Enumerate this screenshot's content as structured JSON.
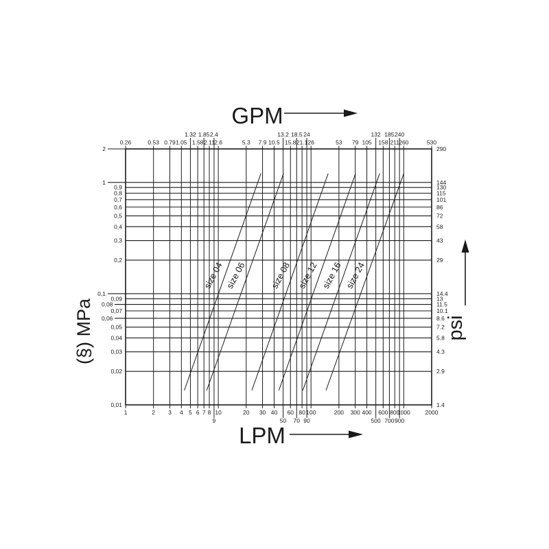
{
  "background": "#ffffff",
  "ink_color": "#1a1a1a",
  "chart_data": {
    "type": "line",
    "description": "Log-log pressure drop vs flow rate chart with parallel size lines",
    "x_scale": "log",
    "y_scale": "log",
    "x_range_lpm": [
      1,
      2000
    ],
    "y_range_mpa": [
      0.01,
      2
    ],
    "x_gridlines_lpm": [
      1,
      2,
      3,
      4,
      5,
      6,
      7,
      8,
      9,
      10,
      20,
      30,
      40,
      50,
      60,
      70,
      80,
      90,
      100,
      200,
      300,
      400,
      500,
      600,
      700,
      800,
      900,
      1000,
      2000
    ],
    "y_gridlines_mpa": [
      2,
      1,
      0.9,
      0.8,
      0.7,
      0.6,
      0.5,
      0.4,
      0.3,
      0.2,
      0.1,
      0.09,
      0.08,
      0.07,
      0.06,
      0.05,
      0.04,
      0.03,
      0.02,
      0.01
    ],
    "axes": {
      "top": {
        "title": "GPM",
        "near_labels": [
          {
            "lpm": 1,
            "label": "0.26"
          },
          {
            "lpm": 2,
            "label": "0.53"
          },
          {
            "lpm": 3,
            "label": "0.79"
          },
          {
            "lpm": 4,
            "label": "1.05"
          },
          {
            "lpm": 6,
            "label": "1.58"
          },
          {
            "lpm": 8,
            "label": "2.11"
          },
          {
            "lpm": 10,
            "label": "2.6"
          },
          {
            "lpm": 20,
            "label": "5.3"
          },
          {
            "lpm": 30,
            "label": "7.9"
          },
          {
            "lpm": 40,
            "label": "10.5"
          },
          {
            "lpm": 60,
            "label": "15.8"
          },
          {
            "lpm": 80,
            "label": "21.1"
          },
          {
            "lpm": 100,
            "label": "26"
          },
          {
            "lpm": 200,
            "label": "53"
          },
          {
            "lpm": 300,
            "label": "79"
          },
          {
            "lpm": 400,
            "label": "105"
          },
          {
            "lpm": 600,
            "label": "158"
          },
          {
            "lpm": 800,
            "label": "211"
          },
          {
            "lpm": 1000,
            "label": "260"
          },
          {
            "lpm": 2000,
            "label": "530"
          }
        ],
        "far_labels": [
          {
            "lpm": 5,
            "label": "1.32"
          },
          {
            "lpm": 7,
            "label": "1.85"
          },
          {
            "lpm": 9,
            "label": "2.4"
          },
          {
            "lpm": 50,
            "label": "13.2"
          },
          {
            "lpm": 70,
            "label": "18.5"
          },
          {
            "lpm": 90,
            "label": "24"
          },
          {
            "lpm": 500,
            "label": "132"
          },
          {
            "lpm": 700,
            "label": "185"
          },
          {
            "lpm": 900,
            "label": "240"
          }
        ]
      },
      "bottom": {
        "title": "LPM",
        "near_labels": [
          {
            "lpm": 1,
            "label": "1"
          },
          {
            "lpm": 2,
            "label": "2"
          },
          {
            "lpm": 3,
            "label": "3"
          },
          {
            "lpm": 4,
            "label": "4"
          },
          {
            "lpm": 5,
            "label": "5"
          },
          {
            "lpm": 6,
            "label": "6"
          },
          {
            "lpm": 7,
            "label": "7"
          },
          {
            "lpm": 8,
            "label": "8"
          },
          {
            "lpm": 10,
            "label": "10"
          },
          {
            "lpm": 20,
            "label": "20"
          },
          {
            "lpm": 30,
            "label": "30"
          },
          {
            "lpm": 40,
            "label": "40"
          },
          {
            "lpm": 60,
            "label": "60"
          },
          {
            "lpm": 80,
            "label": "80"
          },
          {
            "lpm": 100,
            "label": "100"
          },
          {
            "lpm": 200,
            "label": "200"
          },
          {
            "lpm": 300,
            "label": "300"
          },
          {
            "lpm": 400,
            "label": "400"
          },
          {
            "lpm": 600,
            "label": "600"
          },
          {
            "lpm": 800,
            "label": "800"
          },
          {
            "lpm": 1000,
            "label": "1000"
          },
          {
            "lpm": 2000,
            "label": "2000"
          }
        ],
        "far_labels": [
          {
            "lpm": 9,
            "label": "9"
          },
          {
            "lpm": 50,
            "label": "50"
          },
          {
            "lpm": 70,
            "label": "70"
          },
          {
            "lpm": 90,
            "label": "90"
          },
          {
            "lpm": 500,
            "label": "500"
          },
          {
            "lpm": 700,
            "label": "700"
          },
          {
            "lpm": 900,
            "label": "900"
          }
        ]
      },
      "left": {
        "title": "(§) MPa",
        "labels": [
          {
            "mpa": 2,
            "label": "2",
            "leader": "long"
          },
          {
            "mpa": 1,
            "label": "1",
            "leader": "long"
          },
          {
            "mpa": 0.9,
            "label": "0,9",
            "leader": "none"
          },
          {
            "mpa": 0.8,
            "label": "0,8",
            "leader": "none"
          },
          {
            "mpa": 0.7,
            "label": "0,7",
            "leader": "none"
          },
          {
            "mpa": 0.6,
            "label": "0,6",
            "leader": "none"
          },
          {
            "mpa": 0.5,
            "label": "0,5",
            "leader": "none"
          },
          {
            "mpa": 0.4,
            "label": "0,4",
            "leader": "none"
          },
          {
            "mpa": 0.3,
            "label": "0,3",
            "leader": "none"
          },
          {
            "mpa": 0.2,
            "label": "0,2",
            "leader": "none"
          },
          {
            "mpa": 0.1,
            "label": "0,1",
            "leader": "long"
          },
          {
            "mpa": 0.09,
            "label": "0,09",
            "leader": "none"
          },
          {
            "mpa": 0.08,
            "label": "0,08",
            "leader": "short"
          },
          {
            "mpa": 0.07,
            "label": "0,07",
            "leader": "none"
          },
          {
            "mpa": 0.06,
            "label": "0,06",
            "leader": "short"
          },
          {
            "mpa": 0.05,
            "label": "0,05",
            "leader": "none"
          },
          {
            "mpa": 0.04,
            "label": "0,04",
            "leader": "none"
          },
          {
            "mpa": 0.03,
            "label": "0,03",
            "leader": "none"
          },
          {
            "mpa": 0.02,
            "label": "0,02",
            "leader": "none"
          },
          {
            "mpa": 0.01,
            "label": "0,01",
            "leader": "none"
          }
        ]
      },
      "right": {
        "title": "psi",
        "labels": [
          {
            "mpa": 2,
            "label": "290"
          },
          {
            "mpa": 1,
            "label": "144"
          },
          {
            "mpa": 0.9,
            "label": "130"
          },
          {
            "mpa": 0.8,
            "label": "115"
          },
          {
            "mpa": 0.7,
            "label": "101"
          },
          {
            "mpa": 0.6,
            "label": "86"
          },
          {
            "mpa": 0.5,
            "label": "72"
          },
          {
            "mpa": 0.4,
            "label": "58"
          },
          {
            "mpa": 0.3,
            "label": "43"
          },
          {
            "mpa": 0.2,
            "label": "29"
          },
          {
            "mpa": 0.1,
            "label": "14.4"
          },
          {
            "mpa": 0.09,
            "label": "13"
          },
          {
            "mpa": 0.08,
            "label": "11.5"
          },
          {
            "mpa": 0.07,
            "label": "10.1"
          },
          {
            "mpa": 0.06,
            "label": "8.6"
          },
          {
            "mpa": 0.05,
            "label": "7.2"
          },
          {
            "mpa": 0.04,
            "label": "5.8"
          },
          {
            "mpa": 0.03,
            "label": "4.3"
          },
          {
            "mpa": 0.02,
            "label": "2.9"
          },
          {
            "mpa": 0.01,
            "label": "1.4"
          }
        ]
      }
    },
    "series": [
      {
        "name": "size 04",
        "from": {
          "lpm": 4.3,
          "mpa": 0.0135
        },
        "to": {
          "lpm": 28.8,
          "mpa": 1.2
        }
      },
      {
        "name": "size 06",
        "from": {
          "lpm": 7.5,
          "mpa": 0.0135
        },
        "to": {
          "lpm": 50.5,
          "mpa": 1.2
        }
      },
      {
        "name": "size 08",
        "from": {
          "lpm": 23,
          "mpa": 0.0135
        },
        "to": {
          "lpm": 153,
          "mpa": 1.2
        }
      },
      {
        "name": "size 12",
        "from": {
          "lpm": 45,
          "mpa": 0.0135
        },
        "to": {
          "lpm": 302,
          "mpa": 1.2
        }
      },
      {
        "name": "size 16",
        "from": {
          "lpm": 81.5,
          "mpa": 0.0135
        },
        "to": {
          "lpm": 550,
          "mpa": 1.2
        }
      },
      {
        "name": "size 24",
        "from": {
          "lpm": 145,
          "mpa": 0.0135
        },
        "to": {
          "lpm": 1000,
          "mpa": 1.2
        }
      }
    ]
  }
}
